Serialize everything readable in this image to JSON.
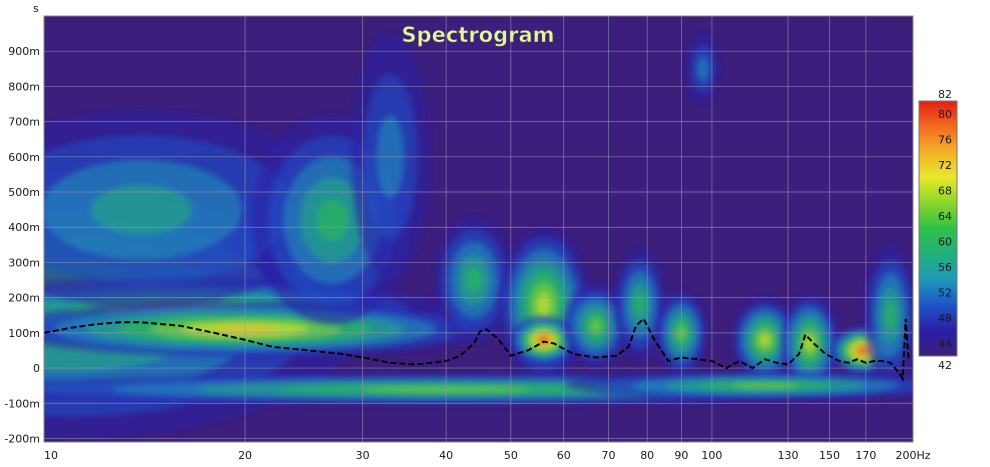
{
  "chart_data": {
    "type": "heatmap",
    "title": "Spectrogram",
    "x_unit": "Hz",
    "y_unit": "s",
    "x_scale": "log",
    "xlim": [
      10,
      200
    ],
    "ylim": [
      -0.21,
      1.0
    ],
    "x_ticks": [
      {
        "value": 10,
        "label": "10"
      },
      {
        "value": 20,
        "label": "20"
      },
      {
        "value": 30,
        "label": "30"
      },
      {
        "value": 40,
        "label": "40"
      },
      {
        "value": 50,
        "label": "50"
      },
      {
        "value": 60,
        "label": "60"
      },
      {
        "value": 70,
        "label": "70"
      },
      {
        "value": 80,
        "label": "80"
      },
      {
        "value": 90,
        "label": "90"
      },
      {
        "value": 100,
        "label": "100"
      },
      {
        "value": 130,
        "label": "130"
      },
      {
        "value": 150,
        "label": "150"
      },
      {
        "value": 170,
        "label": "170"
      },
      {
        "value": 200,
        "label": "200Hz"
      }
    ],
    "y_ticks": [
      {
        "value": 0.9,
        "label": "900m"
      },
      {
        "value": 0.8,
        "label": "800m"
      },
      {
        "value": 0.7,
        "label": "700m"
      },
      {
        "value": 0.6,
        "label": "600m"
      },
      {
        "value": 0.5,
        "label": "500m"
      },
      {
        "value": 0.4,
        "label": "400m"
      },
      {
        "value": 0.3,
        "label": "300m"
      },
      {
        "value": 0.2,
        "label": "200m"
      },
      {
        "value": 0.1,
        "label": "100m"
      },
      {
        "value": 0.0,
        "label": "0"
      },
      {
        "value": -0.1,
        "label": "-100m"
      },
      {
        "value": -0.2,
        "label": "-200m"
      }
    ],
    "grid": true,
    "colorbar": {
      "min": 42,
      "max": 82,
      "ticks": [
        "82",
        "80",
        "76",
        "72",
        "68",
        "64",
        "60",
        "56",
        "52",
        "48",
        "44",
        "42"
      ],
      "tick_values": [
        82,
        80,
        76,
        72,
        68,
        64,
        60,
        56,
        52,
        48,
        44,
        42
      ],
      "colors": [
        "#3b1f7a",
        "#2a1fa6",
        "#1f54c8",
        "#1f98b8",
        "#22b07a",
        "#2fc04a",
        "#8cd62c",
        "#e6e82a",
        "#f5b12a",
        "#f06a1e",
        "#e61e12"
      ]
    },
    "background_color": "#3c1e7c",
    "peak_curve": {
      "style": "dashed",
      "color": "#000000",
      "x": [
        10,
        11,
        12,
        13,
        14,
        16,
        18,
        20,
        22,
        25,
        28,
        30,
        33,
        36,
        40,
        42,
        44,
        45,
        46,
        48,
        50,
        53,
        56,
        58,
        62,
        67,
        72,
        75,
        77,
        79,
        82,
        86,
        90,
        95,
        100,
        105,
        110,
        115,
        120,
        125,
        130,
        135,
        138,
        142,
        148,
        155,
        160,
        165,
        170,
        175,
        180,
        185,
        190,
        193,
        195,
        197
      ],
      "y": [
        0.1,
        0.115,
        0.125,
        0.13,
        0.13,
        0.12,
        0.1,
        0.08,
        0.06,
        0.05,
        0.04,
        0.03,
        0.015,
        0.01,
        0.02,
        0.035,
        0.07,
        0.105,
        0.11,
        0.08,
        0.035,
        0.05,
        0.075,
        0.07,
        0.04,
        0.03,
        0.035,
        0.06,
        0.12,
        0.14,
        0.08,
        0.02,
        0.03,
        0.025,
        0.02,
        0.0,
        0.02,
        0.0,
        0.025,
        0.015,
        0.01,
        0.04,
        0.095,
        0.07,
        0.04,
        0.02,
        0.015,
        0.025,
        0.015,
        0.02,
        0.02,
        0.015,
        -0.01,
        -0.03,
        0.14,
        0.02
      ]
    },
    "blobs": [
      {
        "x": 11,
        "y": 0.18,
        "sx": 0.45,
        "sy": 0.38,
        "level": 0.55
      },
      {
        "x": 16,
        "y": 0.16,
        "sx": 0.4,
        "sy": 0.1,
        "level": 0.72
      },
      {
        "x": 20,
        "y": 0.11,
        "sx": 0.38,
        "sy": 0.08,
        "level": 0.82
      },
      {
        "x": 14,
        "y": 0.45,
        "sx": 0.3,
        "sy": 0.28,
        "level": 0.35
      },
      {
        "x": 27,
        "y": 0.42,
        "sx": 0.12,
        "sy": 0.3,
        "level": 0.5
      },
      {
        "x": 33,
        "y": 0.6,
        "sx": 0.06,
        "sy": 0.35,
        "level": 0.3
      },
      {
        "x": 44,
        "y": 0.25,
        "sx": 0.06,
        "sy": 0.18,
        "level": 0.48
      },
      {
        "x": 56,
        "y": 0.18,
        "sx": 0.07,
        "sy": 0.22,
        "level": 0.72
      },
      {
        "x": 56,
        "y": 0.08,
        "sx": 0.05,
        "sy": 0.07,
        "level": 0.98
      },
      {
        "x": 67,
        "y": 0.12,
        "sx": 0.05,
        "sy": 0.12,
        "level": 0.62
      },
      {
        "x": 78,
        "y": 0.18,
        "sx": 0.04,
        "sy": 0.16,
        "level": 0.52
      },
      {
        "x": 90,
        "y": 0.1,
        "sx": 0.04,
        "sy": 0.12,
        "level": 0.55
      },
      {
        "x": 97,
        "y": 0.85,
        "sx": 0.025,
        "sy": 0.1,
        "level": 0.3
      },
      {
        "x": 120,
        "y": 0.08,
        "sx": 0.05,
        "sy": 0.12,
        "level": 0.7
      },
      {
        "x": 140,
        "y": 0.07,
        "sx": 0.045,
        "sy": 0.14,
        "level": 0.68
      },
      {
        "x": 168,
        "y": 0.05,
        "sx": 0.05,
        "sy": 0.07,
        "level": 0.95
      },
      {
        "x": 185,
        "y": 0.15,
        "sx": 0.04,
        "sy": 0.2,
        "level": 0.5
      },
      {
        "x": 40,
        "y": -0.06,
        "sx": 0.75,
        "sy": 0.045,
        "level": 0.62
      },
      {
        "x": 120,
        "y": -0.05,
        "sx": 0.3,
        "sy": 0.04,
        "level": 0.62
      }
    ]
  }
}
